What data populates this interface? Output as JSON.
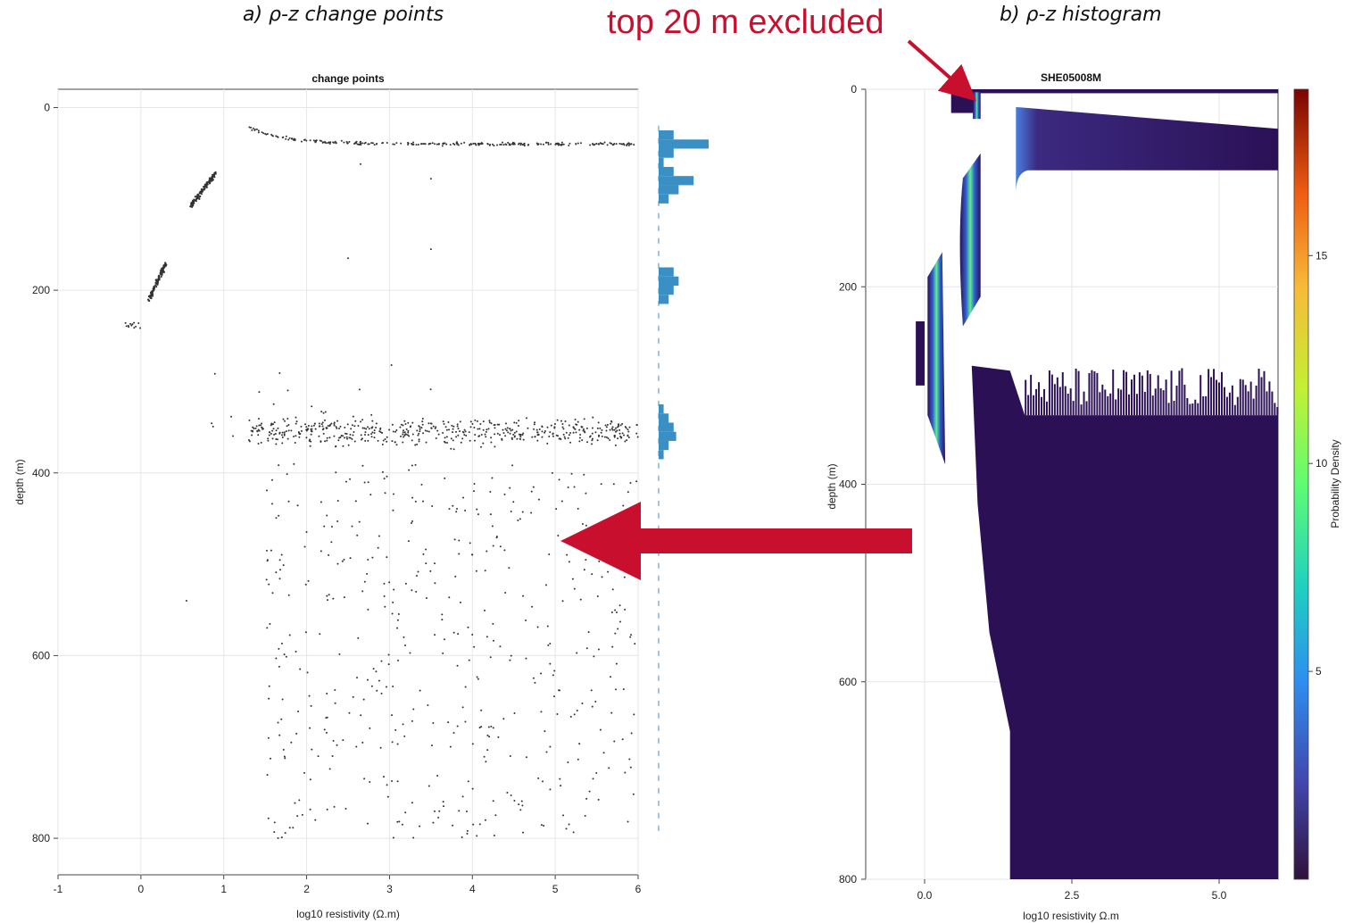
{
  "panel_labels": {
    "a": "a) ρ-z change points",
    "b": "b) ρ-z histogram"
  },
  "annotation": "top 20 m excluded",
  "colors": {
    "annotation": "#c8102e",
    "points": "#333333",
    "marginal_hist": "#3a8fc4",
    "hist_base": "#2b1055"
  },
  "chart_data": [
    {
      "type": "scatter",
      "title": "change points",
      "xlabel": "log10 resistivity (Ω.m)",
      "ylabel": "depth (m)",
      "xlim": [
        -1,
        6
      ],
      "ylim": [
        840,
        -20
      ],
      "y_inverted": true,
      "xticks": [
        "-1",
        "0",
        "1",
        "2",
        "3",
        "4",
        "5",
        "6"
      ],
      "yticks": [
        "0",
        "200",
        "400",
        "600",
        "800"
      ],
      "grid": true,
      "clusters": [
        {
          "desc": "surface arc",
          "x_range": [
            1.3,
            6.0
          ],
          "depth_range": [
            22,
            42
          ]
        },
        {
          "desc": "upper linear",
          "x_range": [
            0.6,
            0.9
          ],
          "depth_range": [
            72,
            110
          ]
        },
        {
          "desc": "middle linear",
          "x_range": [
            0.1,
            0.3
          ],
          "depth_range": [
            170,
            210
          ]
        },
        {
          "desc": "small cluster",
          "x_range": [
            -0.2,
            0.0
          ],
          "depth_range": [
            233,
            242
          ]
        },
        {
          "desc": "dense band",
          "x_range": [
            1.3,
            6.0
          ],
          "depth_range": [
            330,
            380
          ]
        },
        {
          "desc": "sparse scatter",
          "x_range": [
            1.5,
            6.0
          ],
          "depth_range": [
            390,
            800
          ]
        }
      ],
      "marginal_histogram": {
        "depths": [
          30,
          40,
          50,
          60,
          70,
          80,
          90,
          100,
          180,
          190,
          200,
          210,
          330,
          340,
          350,
          360,
          370,
          380
        ],
        "counts": [
          0.3,
          1.0,
          0.3,
          0.1,
          0.3,
          0.7,
          0.4,
          0.2,
          0.3,
          0.4,
          0.3,
          0.2,
          0.1,
          0.2,
          0.3,
          0.35,
          0.2,
          0.1
        ]
      }
    },
    {
      "type": "heatmap",
      "title": "SHE05008M",
      "xlabel": "log10 resistivity Ω.m",
      "ylabel": "depth (m)",
      "xlim": [
        -1,
        6
      ],
      "ylim": [
        800,
        0
      ],
      "y_inverted": true,
      "xticks": [
        "0.0",
        "2.5",
        "5.0"
      ],
      "yticks": [
        "0",
        "200",
        "400",
        "600",
        "800"
      ],
      "colorbar_label": "Probability Density",
      "colorbar_ticks": [
        "5",
        "10",
        "15"
      ],
      "colorbar_range": [
        0,
        19
      ],
      "colormap": "turbo"
    }
  ]
}
